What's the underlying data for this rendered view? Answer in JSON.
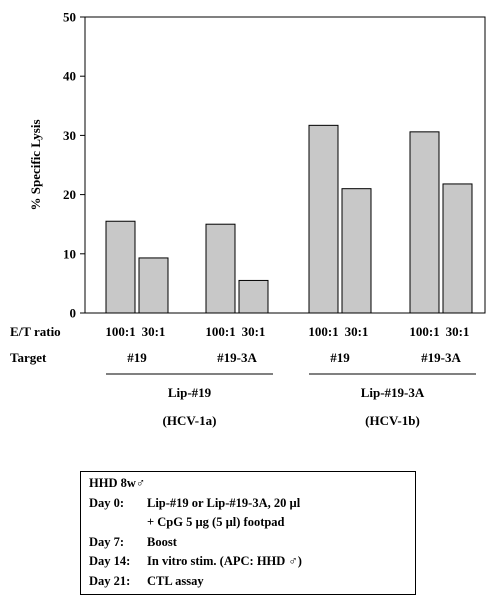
{
  "chart_data": {
    "type": "bar",
    "ylabel": "% Specific Lysis",
    "ylim": [
      0,
      50
    ],
    "yticks": [
      "0",
      "10",
      "20",
      "30",
      "40",
      "50"
    ],
    "row_labels": {
      "et_ratio": "E/T ratio",
      "target": "Target"
    },
    "groups": [
      {
        "et_labels": [
          "100:1",
          "30:1"
        ],
        "values": [
          15.5,
          9.3
        ],
        "target": "#19"
      },
      {
        "et_labels": [
          "100:1",
          "30:1"
        ],
        "values": [
          15.0,
          5.5
        ],
        "target": "#19-3A"
      },
      {
        "et_labels": [
          "100:1",
          "30:1"
        ],
        "values": [
          31.7,
          21.0
        ],
        "target": "#19"
      },
      {
        "et_labels": [
          "100:1",
          "30:1"
        ],
        "values": [
          30.6,
          21.8
        ],
        "target": "#19-3A"
      }
    ],
    "immunizations": [
      {
        "name": "Lip-#19",
        "strain": "(HCV-1a)"
      },
      {
        "name": "Lip-#19-3A",
        "strain": "(HCV-1b)"
      }
    ],
    "bar_fill": "#c8c8c8"
  },
  "protocol": {
    "header": "HHD 8w♂",
    "lines": [
      {
        "day": "Day 0:",
        "text": "Lip-#19 or Lip-#19-3A, 20 µl"
      },
      {
        "day": "",
        "text": "+ CpG 5 µg (5 µl) footpad"
      },
      {
        "day": "Day 7:",
        "text": "Boost"
      },
      {
        "day": "Day 14:",
        "text": "In vitro stim. (APC: HHD ♂)"
      },
      {
        "day": "Day 21:",
        "text": "CTL assay"
      }
    ]
  }
}
